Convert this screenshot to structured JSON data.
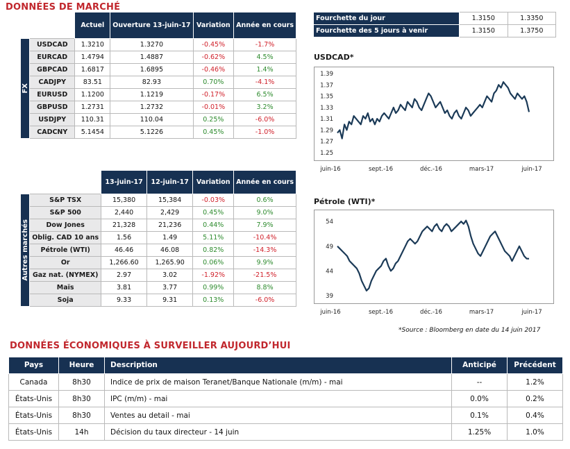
{
  "title_market": "DONNÉES DE MARCHÉ",
  "fx_table": {
    "side_label": "FX",
    "headers": [
      "Actuel",
      "Ouverture 13-juin-17",
      "Variation",
      "Année en cours"
    ],
    "rows": [
      {
        "name": "USDCAD",
        "actuel": "1.3210",
        "ouverture": "1.3270",
        "variation": "-0.45%",
        "annee": "-1.7%"
      },
      {
        "name": "EURCAD",
        "actuel": "1.4794",
        "ouverture": "1.4887",
        "variation": "-0.62%",
        "annee": "4.5%"
      },
      {
        "name": "GBPCAD",
        "actuel": "1.6817",
        "ouverture": "1.6895",
        "variation": "-0.46%",
        "annee": "1.4%"
      },
      {
        "name": "CADJPY",
        "actuel": "83.51",
        "ouverture": "82.93",
        "variation": "0.70%",
        "annee": "-4.1%"
      },
      {
        "name": "EURUSD",
        "actuel": "1.1200",
        "ouverture": "1.1219",
        "variation": "-0.17%",
        "annee": "6.5%"
      },
      {
        "name": "GBPUSD",
        "actuel": "1.2731",
        "ouverture": "1.2732",
        "variation": "-0.01%",
        "annee": "3.2%"
      },
      {
        "name": "USDJPY",
        "actuel": "110.31",
        "ouverture": "110.04",
        "variation": "0.25%",
        "annee": "-6.0%"
      },
      {
        "name": "CADCNY",
        "actuel": "5.1454",
        "ouverture": "5.1226",
        "variation": "0.45%",
        "annee": "-1.0%"
      }
    ]
  },
  "range_table": {
    "rows": [
      {
        "label": "Fourchette du jour",
        "low": "1.3150",
        "high": "1.3350"
      },
      {
        "label": "Fourchette des 5 jours à venir",
        "low": "1.3150",
        "high": "1.3750"
      }
    ]
  },
  "markets_table": {
    "side_label": "Autres marchés",
    "headers": [
      "13-juin-17",
      "12-juin-17",
      "Variation",
      "Année en cours"
    ],
    "rows": [
      {
        "name": "S&P TSX",
        "a": "15,380",
        "b": "15,384",
        "variation": "-0.03%",
        "annee": "0.6%"
      },
      {
        "name": "S&P 500",
        "a": "2,440",
        "b": "2,429",
        "variation": "0.45%",
        "annee": "9.0%"
      },
      {
        "name": "Dow Jones",
        "a": "21,328",
        "b": "21,236",
        "variation": "0.44%",
        "annee": "7.9%"
      },
      {
        "name": "Oblig. CAD 10 ans",
        "a": "1.56",
        "b": "1.49",
        "variation": "5.11%",
        "annee": "-10.4%"
      },
      {
        "name": "Pétrole (WTI)",
        "a": "46.46",
        "b": "46.08",
        "variation": "0.82%",
        "annee": "-14.3%"
      },
      {
        "name": "Or",
        "a": "1,266.60",
        "b": "1,265.90",
        "variation": "0.06%",
        "annee": "9.9%"
      },
      {
        "name": "Gaz nat. (NYMEX)",
        "a": "2.97",
        "b": "3.02",
        "variation": "-1.92%",
        "annee": "-21.5%"
      },
      {
        "name": "Maïs",
        "a": "3.81",
        "b": "3.77",
        "variation": "0.99%",
        "annee": "8.8%"
      },
      {
        "name": "Soja",
        "a": "9.33",
        "b": "9.31",
        "variation": "0.13%",
        "annee": "-6.0%"
      }
    ]
  },
  "source_note": "*Source : Bloomberg en date du  14 juin 2017",
  "title_eco": "DONNÉES ÉCONOMIQUES À SURVEILLER AUJOURD’HUI",
  "eco_table": {
    "headers": [
      "Pays",
      "Heure",
      "Description",
      "Anticipé",
      "Précédent"
    ],
    "rows": [
      {
        "pays": "Canada",
        "heure": "8h30",
        "description": "Indice de prix de maison Teranet/Banque Nationale (m/m) - mai",
        "anticipe": "--",
        "precedent": "1.2%"
      },
      {
        "pays": "États-Unis",
        "heure": "8h30",
        "description": "IPC (m/m) - mai",
        "anticipe": "0.0%",
        "precedent": "0.2%"
      },
      {
        "pays": "États-Unis",
        "heure": "8h30",
        "description": "Ventes au detail - mai",
        "anticipe": "0.1%",
        "precedent": "0.4%"
      },
      {
        "pays": "États-Unis",
        "heure": "14h",
        "description": "Décision du taux directeur - 14 juin",
        "anticipe": "1.25%",
        "precedent": "1.0%"
      }
    ]
  },
  "colors": {
    "header_bg": "#173152",
    "negative": "#d0202a",
    "positive": "#2e8b2e",
    "title": "#c1272d",
    "line": "#1b3a57"
  },
  "chart_data": [
    {
      "type": "line",
      "title": "USDCAD*",
      "x_labels": [
        "juin-16",
        "sept.-16",
        "déc.-16",
        "mars-17",
        "juin-17"
      ],
      "yticks": [
        "1.39",
        "1.37",
        "1.35",
        "1.33",
        "1.31",
        "1.29",
        "1.27",
        "1.25"
      ],
      "ylim": [
        1.25,
        1.39
      ],
      "values": [
        1.285,
        1.29,
        1.275,
        1.3,
        1.29,
        1.305,
        1.3,
        1.315,
        1.31,
        1.305,
        1.3,
        1.315,
        1.31,
        1.32,
        1.305,
        1.31,
        1.3,
        1.31,
        1.305,
        1.315,
        1.32,
        1.315,
        1.31,
        1.32,
        1.33,
        1.32,
        1.325,
        1.335,
        1.33,
        1.325,
        1.34,
        1.335,
        1.33,
        1.345,
        1.34,
        1.33,
        1.325,
        1.335,
        1.345,
        1.355,
        1.35,
        1.34,
        1.33,
        1.335,
        1.34,
        1.33,
        1.32,
        1.325,
        1.315,
        1.31,
        1.32,
        1.325,
        1.315,
        1.31,
        1.32,
        1.33,
        1.325,
        1.315,
        1.32,
        1.325,
        1.33,
        1.335,
        1.33,
        1.34,
        1.35,
        1.345,
        1.34,
        1.355,
        1.36,
        1.37,
        1.365,
        1.375,
        1.37,
        1.365,
        1.355,
        1.35,
        1.345,
        1.355,
        1.35,
        1.345,
        1.35,
        1.34,
        1.322
      ]
    },
    {
      "type": "line",
      "title": "Pétrole (WTI)*",
      "x_labels": [
        "juin-16",
        "sept.-16",
        "déc.-16",
        "mars-17",
        "juin-17"
      ],
      "yticks": [
        "54",
        "49",
        "44",
        "39"
      ],
      "ylim": [
        39,
        55
      ],
      "values": [
        49,
        48.5,
        48,
        47.5,
        47,
        46,
        45.5,
        45,
        44.5,
        43.5,
        42,
        41,
        40,
        40.5,
        42,
        43,
        44,
        44.5,
        45,
        46,
        46.5,
        45,
        44,
        44.5,
        45.5,
        46,
        47,
        48,
        49,
        50,
        50.5,
        50,
        49.5,
        50,
        51,
        52,
        52.5,
        53,
        52.5,
        52,
        53,
        53.5,
        52.5,
        52,
        53,
        53.5,
        53,
        52,
        52.5,
        53,
        53.5,
        54,
        53.5,
        54.2,
        53,
        51,
        49.5,
        48.5,
        47.5,
        47,
        48,
        49,
        50,
        51,
        51.5,
        52,
        51,
        50,
        49,
        48,
        47.5,
        47,
        46,
        47,
        48,
        49,
        48,
        47,
        46.5,
        46.46
      ]
    }
  ]
}
